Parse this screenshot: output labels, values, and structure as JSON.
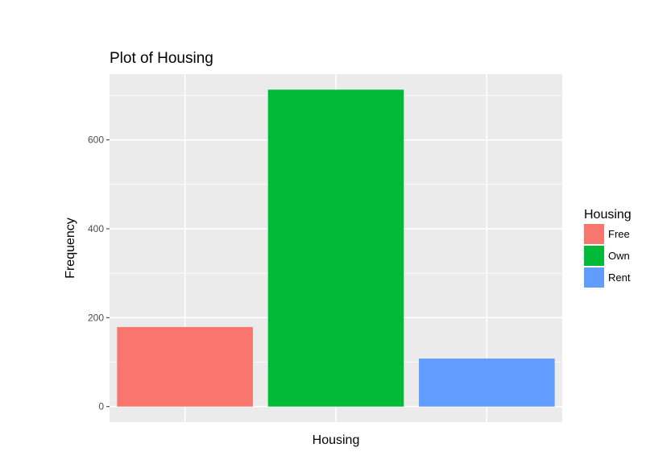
{
  "chart_data": {
    "type": "bar",
    "title": "Plot of Housing",
    "xlabel": "Housing",
    "ylabel": "Frequency",
    "categories": [
      "Free",
      "Own",
      "Rent"
    ],
    "values": [
      179,
      713,
      108
    ],
    "colors": [
      "#f8766d",
      "#00ba38",
      "#619cff"
    ],
    "ylim": [
      -35,
      748
    ],
    "yticks": [
      0,
      200,
      400,
      600
    ],
    "grid": true,
    "panel_background": "#ebebeb",
    "legend": {
      "title": "Housing",
      "placement": "right",
      "items": [
        {
          "label": "Free",
          "color": "#f8766d"
        },
        {
          "label": "Own",
          "color": "#00ba38"
        },
        {
          "label": "Rent",
          "color": "#619cff"
        }
      ]
    }
  }
}
